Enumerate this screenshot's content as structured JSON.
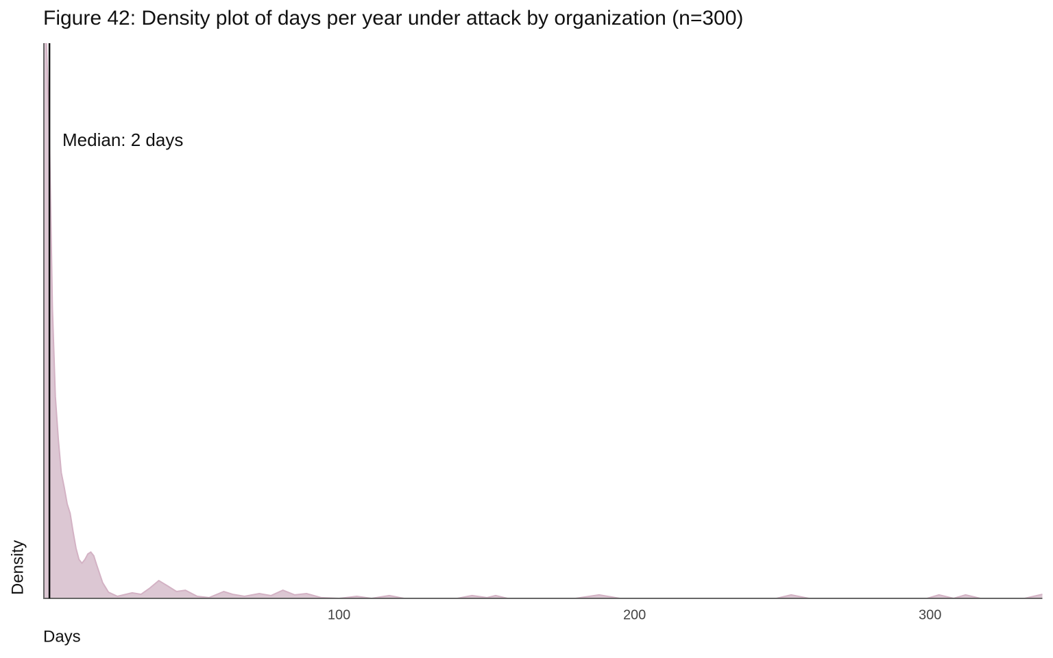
{
  "chart_data": {
    "type": "density",
    "title": "Figure 42: Density plot of days per year under attack by organization (n=300)",
    "x_label": "Days",
    "y_label": "Density",
    "x": [
      0,
      1,
      2,
      3,
      4,
      5,
      6,
      7,
      8,
      9,
      10,
      11,
      12,
      13,
      14,
      15,
      16,
      17,
      18,
      20,
      22,
      25,
      30,
      33,
      36,
      39,
      42,
      45,
      48,
      52,
      56,
      61,
      64,
      68,
      73,
      77,
      81,
      85,
      89,
      94,
      100,
      106,
      111,
      117,
      122,
      140,
      145,
      150,
      153,
      157,
      180,
      188,
      195,
      248,
      253,
      259,
      299,
      303,
      308,
      312,
      317,
      332,
      338
    ],
    "values": [
      0.3,
      0.3,
      0.249,
      0.157,
      0.109,
      0.086,
      0.068,
      0.06,
      0.051,
      0.046,
      0.036,
      0.027,
      0.021,
      0.019,
      0.021,
      0.024,
      0.025,
      0.023,
      0.018,
      0.0085,
      0.0033,
      0.0011,
      0.003,
      0.0022,
      0.0056,
      0.0096,
      0.0067,
      0.0037,
      0.0044,
      0.0011,
      0.0004,
      0.0037,
      0.0022,
      0.0011,
      0.0026,
      0.0015,
      0.0044,
      0.0019,
      0.0026,
      0.0004,
      0,
      0.0011,
      0,
      0.0015,
      0,
      0,
      0.0015,
      0.0004,
      0.0015,
      0,
      0,
      0.0019,
      0,
      0,
      0.0019,
      0,
      0,
      0.0019,
      0,
      0.0019,
      0,
      0,
      0.0022
    ],
    "color": "#dcc7d3",
    "median": 2,
    "annotation": "Median: 2 days",
    "xlim": [
      0,
      338
    ],
    "xticks": [
      100,
      200,
      300
    ],
    "ylim": [
      0,
      0.3
    ],
    "grid": false
  }
}
